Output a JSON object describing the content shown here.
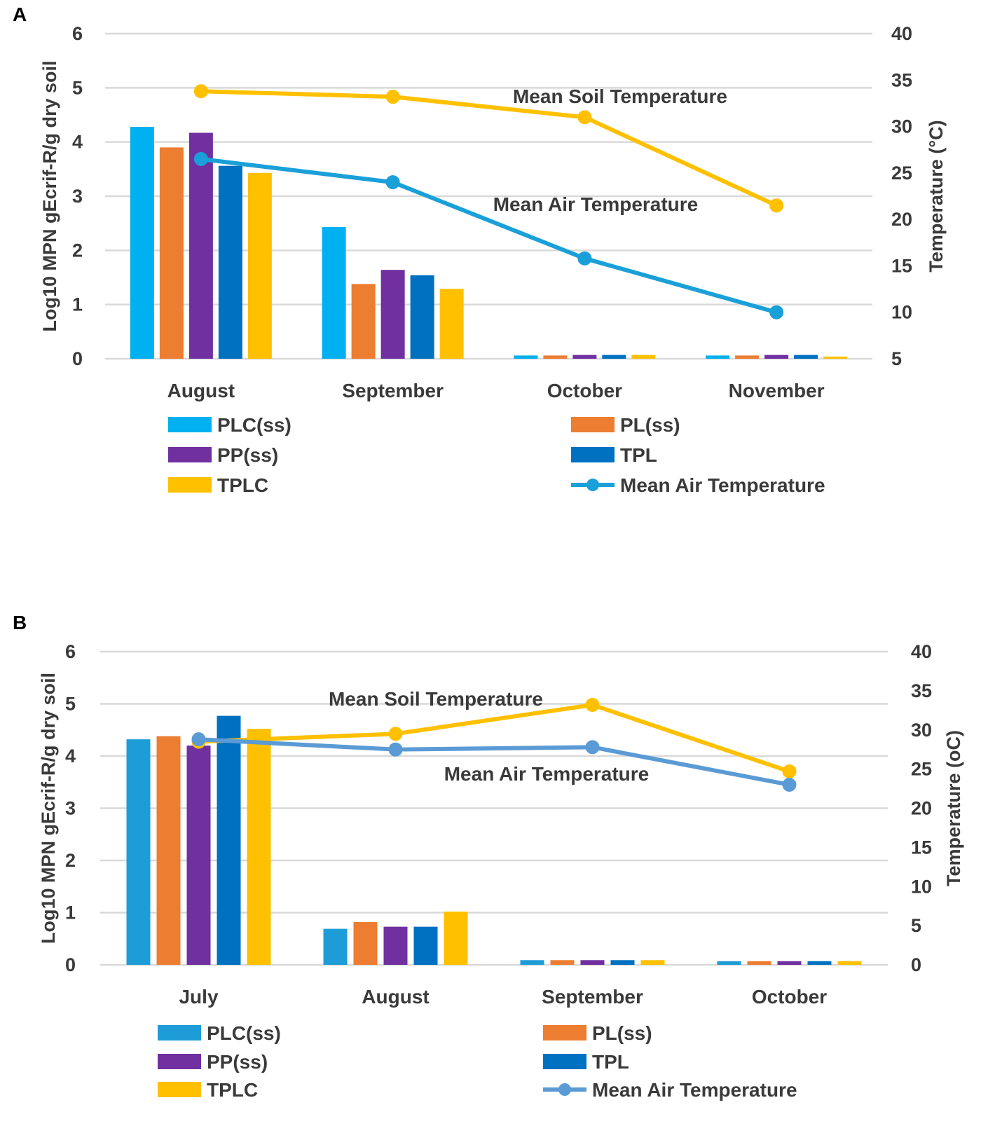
{
  "chart_data": [
    {
      "type": "bar",
      "panel_label": "A",
      "categories": [
        "August",
        "September",
        "October",
        "November"
      ],
      "series": [
        {
          "name": "PLC(ss)",
          "color": "#00b0f0",
          "values": [
            4.28,
            2.43,
            0.06,
            0.06
          ]
        },
        {
          "name": "PL(ss)",
          "color": "#ed7d31",
          "values": [
            3.9,
            1.38,
            0.06,
            0.06
          ]
        },
        {
          "name": "PP(ss)",
          "color": "#7030a0",
          "values": [
            4.17,
            1.64,
            0.07,
            0.07
          ]
        },
        {
          "name": "TPL",
          "color": "#0070c0",
          "values": [
            3.56,
            1.54,
            0.07,
            0.07
          ]
        },
        {
          "name": "TPLC",
          "color": "#ffc000",
          "values": [
            3.43,
            1.29,
            0.07,
            0.04
          ]
        }
      ],
      "lines": [
        {
          "name": "Mean Soil Temperature",
          "color": "#ffc000",
          "axis": "right",
          "values": [
            33.8,
            33.2,
            31.0,
            21.5
          ]
        },
        {
          "name": "Mean Air Temperature",
          "color": "#1aa0d8",
          "axis": "right",
          "values": [
            26.5,
            24.0,
            15.8,
            10.0
          ]
        }
      ],
      "ylabel": "Log10 MPN gEcrif-R/g dry soil",
      "ylim": [
        0,
        6
      ],
      "yticks": [
        "0",
        "1",
        "2",
        "3",
        "4",
        "5",
        "6"
      ],
      "y2label": "Temperature (°C)",
      "y2lim": [
        5,
        40
      ],
      "y2ticks": [
        "5",
        "10",
        "15",
        "20",
        "25",
        "30",
        "35",
        "40"
      ],
      "grid": true,
      "annotations": [
        "Mean Soil Temperature",
        "Mean Air Temperature"
      ],
      "legend": [
        "PLC(ss)",
        "PL(ss)",
        "PP(ss)",
        "TPL",
        "TPLC",
        "Mean Air Temperature"
      ]
    },
    {
      "type": "bar",
      "panel_label": "B",
      "categories": [
        "July",
        "August",
        "September",
        "October"
      ],
      "series": [
        {
          "name": "PLC(ss)",
          "color": "#1e9cd7",
          "values": [
            4.32,
            0.69,
            0.09,
            0.07
          ]
        },
        {
          "name": "PL(ss)",
          "color": "#ed7d31",
          "values": [
            4.38,
            0.82,
            0.09,
            0.07
          ]
        },
        {
          "name": "PP(ss)",
          "color": "#7030a0",
          "values": [
            4.2,
            0.73,
            0.09,
            0.07
          ]
        },
        {
          "name": "TPL",
          "color": "#0070c0",
          "values": [
            4.77,
            0.73,
            0.09,
            0.07
          ]
        },
        {
          "name": "TPLC",
          "color": "#ffc000",
          "values": [
            4.52,
            1.02,
            0.09,
            0.07
          ]
        }
      ],
      "lines": [
        {
          "name": "Mean Soil Temperature",
          "color": "#ffc000",
          "axis": "right",
          "values": [
            28.5,
            29.5,
            33.2,
            24.7
          ]
        },
        {
          "name": "Mean Air Temperature",
          "color": "#5b9bd5",
          "axis": "right",
          "values": [
            28.8,
            27.5,
            27.8,
            23.0
          ]
        }
      ],
      "ylabel": "Log10 MPN gEcrif-R/g  dry soil",
      "ylim": [
        0,
        6
      ],
      "yticks": [
        "0",
        "1",
        "2",
        "3",
        "4",
        "5",
        "6"
      ],
      "y2label": "Temperature (oC)",
      "y2lim": [
        0,
        40
      ],
      "y2ticks": [
        "0",
        "5",
        "10",
        "15",
        "20",
        "25",
        "30",
        "35",
        "40"
      ],
      "grid": true,
      "annotations": [
        "Mean Soil Temperature",
        "Mean Air Temperature"
      ],
      "legend": [
        "PLC(ss)",
        "PL(ss)",
        "PP(ss)",
        "TPL",
        "TPLC",
        "Mean Air Temperature"
      ]
    }
  ]
}
